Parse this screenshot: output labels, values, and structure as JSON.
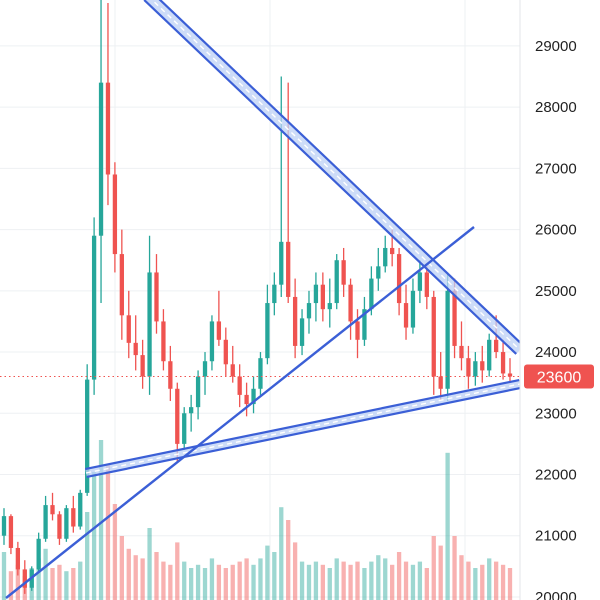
{
  "chart_data": {
    "type": "candlestick",
    "title": "",
    "xlabel": "",
    "ylabel": "",
    "y_axis_position": "right",
    "grid": true,
    "ylim": [
      19950,
      29750
    ],
    "y_ticks": [
      20000,
      21000,
      22000,
      23000,
      24000,
      25000,
      26000,
      27000,
      28000,
      29000
    ],
    "y_tick_labels": [
      "20000",
      "21000",
      "22000",
      "23000",
      "24000",
      "25000",
      "26000",
      "27000",
      "28000",
      "29000"
    ],
    "current_price": 23600,
    "current_price_label": "23600",
    "colors": {
      "up": "#26a69a",
      "down": "#ef5350",
      "trendline": "#3b5fd6",
      "channel_fill": "#bcd0f5",
      "price_tag": "#ef5350",
      "price_line": "#ef5350",
      "grid": "#eef0f3"
    },
    "candles": [
      [
        21000,
        21450,
        20850,
        21320
      ],
      [
        21320,
        21350,
        20700,
        20800
      ],
      [
        20800,
        20900,
        20350,
        20450
      ],
      [
        20450,
        20600,
        20050,
        20150
      ],
      [
        20150,
        20500,
        20100,
        20450
      ],
      [
        20450,
        21050,
        20400,
        20950
      ],
      [
        20950,
        21650,
        20900,
        21500
      ],
      [
        21500,
        21700,
        21250,
        21350
      ],
      [
        21350,
        21400,
        20850,
        20950
      ],
      [
        20950,
        21500,
        20900,
        21450
      ],
      [
        21450,
        21650,
        21050,
        21150
      ],
      [
        21150,
        21750,
        21100,
        21700
      ],
      [
        21700,
        23800,
        21650,
        23550
      ],
      [
        23550,
        26200,
        23300,
        25900
      ],
      [
        25900,
        29750,
        24800,
        28400
      ],
      [
        28400,
        29700,
        26400,
        26900
      ],
      [
        26900,
        27100,
        25300,
        25600
      ],
      [
        25600,
        26000,
        24200,
        24600
      ],
      [
        24600,
        25000,
        23900,
        24150
      ],
      [
        24150,
        24600,
        23700,
        23950
      ],
      [
        23950,
        24200,
        23400,
        23600
      ],
      [
        23600,
        25900,
        23300,
        25300
      ],
      [
        25300,
        25600,
        24300,
        24500
      ],
      [
        24500,
        24700,
        23700,
        23850
      ],
      [
        23850,
        24100,
        23200,
        23400
      ],
      [
        23400,
        23500,
        22200,
        22500
      ],
      [
        22500,
        23100,
        22400,
        23000
      ],
      [
        23000,
        23300,
        22700,
        23100
      ],
      [
        23100,
        23700,
        22900,
        23600
      ],
      [
        23600,
        24000,
        23300,
        23850
      ],
      [
        23850,
        24600,
        23700,
        24500
      ],
      [
        24500,
        25000,
        24100,
        24200
      ],
      [
        24200,
        24400,
        23600,
        23800
      ],
      [
        23800,
        24100,
        23500,
        23600
      ],
      [
        23600,
        23800,
        23100,
        23300
      ],
      [
        23300,
        23500,
        22950,
        23150
      ],
      [
        23150,
        23600,
        23000,
        23400
      ],
      [
        23400,
        24000,
        23300,
        23900
      ],
      [
        23900,
        25100,
        23800,
        24800
      ],
      [
        24800,
        25300,
        24600,
        25100
      ],
      [
        25100,
        28500,
        24900,
        25800
      ],
      [
        25800,
        28400,
        24800,
        24900
      ],
      [
        24900,
        25200,
        23900,
        24100
      ],
      [
        24100,
        24700,
        23950,
        24550
      ],
      [
        24550,
        25000,
        24300,
        24800
      ],
      [
        24800,
        25300,
        24500,
        25100
      ],
      [
        25100,
        25300,
        24500,
        24700
      ],
      [
        24700,
        25200,
        24400,
        24800
      ],
      [
        24800,
        25600,
        24700,
        25500
      ],
      [
        25500,
        25700,
        24900,
        25100
      ],
      [
        25100,
        25200,
        24200,
        24500
      ],
      [
        24500,
        24700,
        23900,
        24200
      ],
      [
        24200,
        24900,
        24100,
        24700
      ],
      [
        24700,
        25400,
        24600,
        25200
      ],
      [
        25200,
        25700,
        25000,
        25400
      ],
      [
        25400,
        25900,
        25300,
        25700
      ],
      [
        25700,
        26000,
        25400,
        25600
      ],
      [
        25600,
        25700,
        24600,
        24800
      ],
      [
        24800,
        25100,
        24200,
        24400
      ],
      [
        24400,
        25200,
        24300,
        25000
      ],
      [
        25000,
        25500,
        24800,
        25300
      ],
      [
        25300,
        25400,
        24700,
        24900
      ],
      [
        24900,
        25000,
        23300,
        23600
      ],
      [
        23600,
        24000,
        23200,
        23400
      ],
      [
        23400,
        25300,
        23200,
        25000
      ],
      [
        25000,
        25200,
        23900,
        24100
      ],
      [
        24100,
        24500,
        23700,
        23900
      ],
      [
        23900,
        24100,
        23400,
        23600
      ],
      [
        23600,
        24000,
        23450,
        23850
      ],
      [
        23850,
        24100,
        23500,
        23700
      ],
      [
        23700,
        24300,
        23600,
        24200
      ],
      [
        24200,
        24600,
        23900,
        24000
      ],
      [
        24000,
        24200,
        23550,
        23650
      ],
      [
        23650,
        23900,
        23500,
        23600
      ]
    ],
    "volumes": [
      0.3,
      0.18,
      0.22,
      0.15,
      0.2,
      0.26,
      0.32,
      0.2,
      0.22,
      0.18,
      0.2,
      0.24,
      0.55,
      0.8,
      1.0,
      0.85,
      0.6,
      0.4,
      0.32,
      0.28,
      0.26,
      0.45,
      0.3,
      0.24,
      0.22,
      0.36,
      0.24,
      0.2,
      0.22,
      0.2,
      0.26,
      0.22,
      0.2,
      0.22,
      0.24,
      0.26,
      0.22,
      0.26,
      0.34,
      0.3,
      0.58,
      0.5,
      0.36,
      0.24,
      0.22,
      0.24,
      0.22,
      0.2,
      0.26,
      0.24,
      0.22,
      0.24,
      0.2,
      0.24,
      0.28,
      0.26,
      0.22,
      0.3,
      0.24,
      0.22,
      0.24,
      0.2,
      0.4,
      0.34,
      0.92,
      0.4,
      0.28,
      0.24,
      0.2,
      0.22,
      0.26,
      0.24,
      0.22,
      0.2
    ]
  }
}
